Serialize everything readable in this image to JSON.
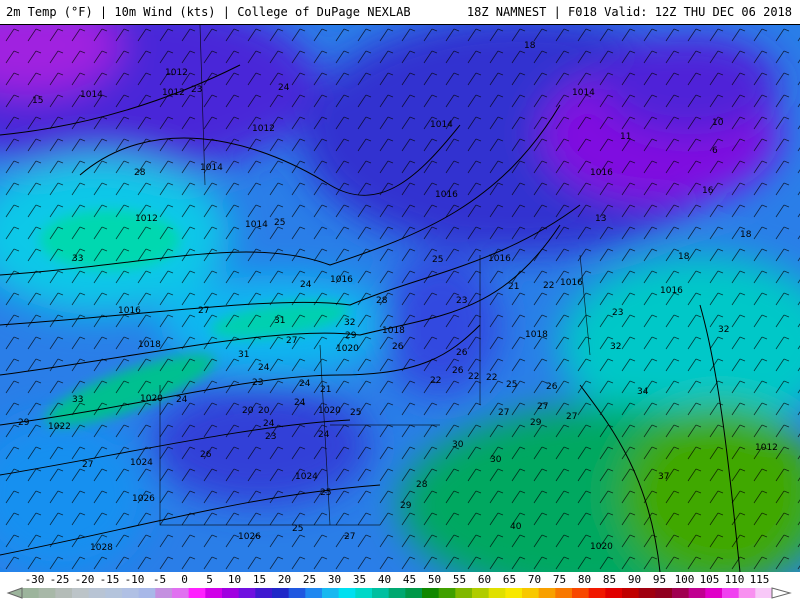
{
  "header": {
    "left": "2m Temp (°F) | 10m Wind (kts) | College of DuPage NEXLAB",
    "right": "18Z NAMNEST | F018 Valid: 12Z THU DEC 06 2018"
  },
  "map": {
    "isobar_labels": [
      "1014",
      "1012",
      "1012",
      "1012",
      "1012",
      "1014",
      "1014",
      "1016",
      "1016",
      "1016",
      "1016",
      "1018",
      "1018",
      "1018",
      "1020",
      "1020",
      "1020",
      "1022",
      "1024",
      "1024",
      "1026",
      "1026",
      "1028",
      "1020",
      "1014",
      "1016",
      "1012",
      "1016",
      "1014",
      "1016"
    ],
    "temp_labels": [
      "15",
      "23",
      "24",
      "18",
      "28",
      "25",
      "33",
      "24",
      "27",
      "31",
      "32",
      "28",
      "25",
      "23",
      "21",
      "22",
      "31",
      "27",
      "29",
      "26",
      "24",
      "23",
      "21",
      "20",
      "24",
      "24",
      "25",
      "22",
      "22",
      "26",
      "25",
      "26",
      "27",
      "27",
      "29",
      "30",
      "30",
      "28",
      "25",
      "24",
      "23",
      "24",
      "26",
      "27",
      "29",
      "40",
      "37",
      "34",
      "32",
      "32",
      "33",
      "29",
      "27",
      "25",
      "24",
      "20",
      "22",
      "27",
      "26",
      "10",
      "6",
      "18",
      "11",
      "13",
      "16",
      "23",
      "18"
    ]
  },
  "colorbar": {
    "ticks": [
      "-30",
      "-25",
      "-20",
      "-15",
      "-10",
      "-5",
      "0",
      "5",
      "10",
      "15",
      "20",
      "25",
      "30",
      "35",
      "40",
      "45",
      "50",
      "55",
      "60",
      "65",
      "70",
      "75",
      "80",
      "85",
      "90",
      "95",
      "100",
      "105",
      "110",
      "115"
    ],
    "colors": [
      "#9cb49c",
      "#a8b8a8",
      "#b4bcb8",
      "#bcc4c8",
      "#b8c4d4",
      "#b4c4dc",
      "#b0c0e4",
      "#a8b8e8",
      "#c490e0",
      "#e070f0",
      "#ff20ff",
      "#d000e8",
      "#a000e0",
      "#7010e0",
      "#4018d0",
      "#2028c8",
      "#2058e0",
      "#2088f0",
      "#18b8f0",
      "#00e0f0",
      "#00d8c8",
      "#00c0a0",
      "#00a870",
      "#009848",
      "#108800",
      "#40a000",
      "#80b800",
      "#b0cc00",
      "#e0e000",
      "#f8e800",
      "#f8c800",
      "#f8a000",
      "#f87800",
      "#f84800",
      "#f01800",
      "#e00000",
      "#c00000",
      "#a00010",
      "#900020",
      "#a00050",
      "#c00090",
      "#e000c8",
      "#f040f0",
      "#f890f0",
      "#f8c8f8"
    ]
  }
}
